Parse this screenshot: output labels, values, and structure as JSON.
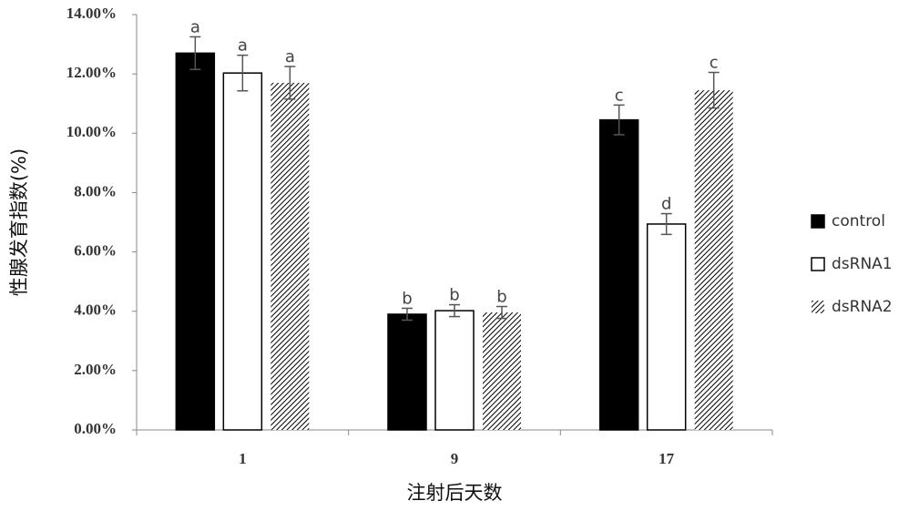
{
  "chart_data": {
    "type": "bar",
    "y_label": "性腺发育指数(%)",
    "x_label": "注射后天数",
    "categories": [
      "1",
      "9",
      "17"
    ],
    "series": [
      {
        "name": "control",
        "color": "#000000",
        "values": [
          12.7,
          3.9,
          10.45
        ],
        "errors": [
          0.55,
          0.2,
          0.5
        ],
        "letters": [
          "a",
          "b",
          "c"
        ]
      },
      {
        "name": "dsRNA1",
        "color": "#ffffff",
        "values": [
          12.03,
          4.02,
          6.94
        ],
        "errors": [
          0.6,
          0.2,
          0.35
        ],
        "letters": [
          "a",
          "b",
          "d"
        ]
      },
      {
        "name": "dsRNA2",
        "color": "#000000",
        "pattern": "hatch",
        "values": [
          11.7,
          3.96,
          11.45
        ],
        "errors": [
          0.55,
          0.2,
          0.6
        ],
        "letters": [
          "a",
          "b",
          "c"
        ]
      }
    ],
    "ylim": [
      0,
      14
    ],
    "yticks": [
      {
        "value": 0,
        "label": "0.00%"
      },
      {
        "value": 2,
        "label": "2.00%"
      },
      {
        "value": 4,
        "label": "4.00%"
      },
      {
        "value": 6,
        "label": "6.00%"
      },
      {
        "value": 8,
        "label": "8.00%"
      },
      {
        "value": 10,
        "label": "10.00%"
      },
      {
        "value": 12,
        "label": "12.00%"
      },
      {
        "value": 14,
        "label": "14.00%"
      }
    ],
    "legend": "right"
  }
}
